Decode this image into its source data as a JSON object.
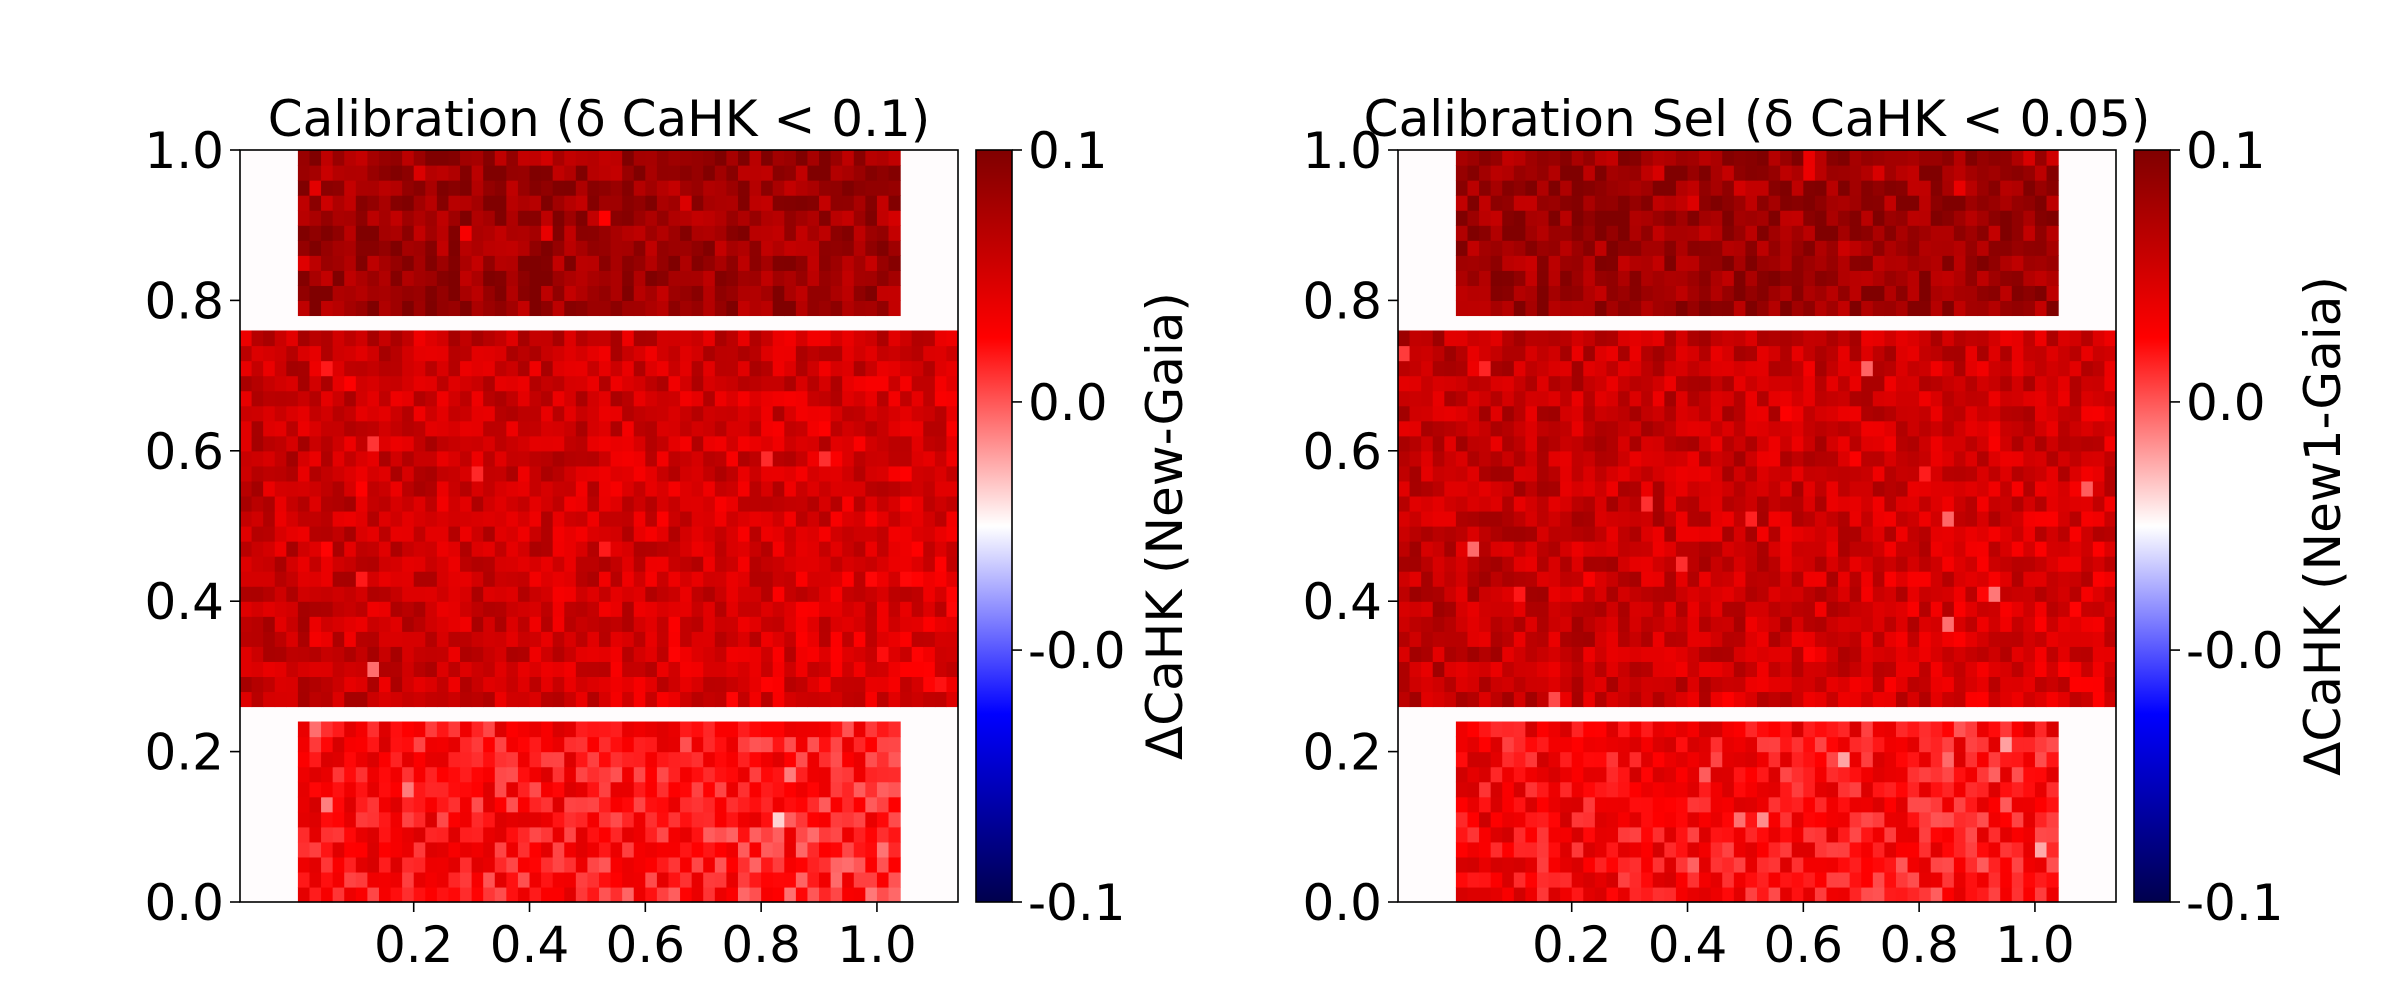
{
  "chart_data": [
    {
      "type": "heatmap",
      "title": "Calibration (δ CaHK < 0.1)",
      "x_ticks": [
        "0.2",
        "0.4",
        "0.6",
        "0.8",
        "1.0"
      ],
      "x_tick_values": [
        0.2,
        0.4,
        0.6,
        0.8,
        1.0
      ],
      "y_ticks": [
        "0.0",
        "0.2",
        "0.4",
        "0.6",
        "0.8",
        "1.0"
      ],
      "y_tick_values": [
        0.0,
        0.2,
        0.4,
        0.6,
        0.8,
        1.0
      ],
      "xlim": [
        -0.1,
        1.14
      ],
      "ylim": [
        0.0,
        1.0
      ],
      "colorbar": {
        "label": "ΔCaHK (New-Gaia)",
        "tick_labels": [
          "0.1",
          "0.0",
          "-0.0",
          "-0.1"
        ],
        "tick_values": [
          0.1,
          0.033,
          -0.033,
          -0.1
        ],
        "range": [
          -0.1,
          0.1
        ],
        "colormap": "seismic"
      },
      "regions": [
        {
          "x": [
            0.0,
            1.04
          ],
          "y": [
            0.78,
            1.0
          ],
          "mean_value": 0.088
        },
        {
          "x": [
            -0.1,
            1.14
          ],
          "y": [
            0.26,
            0.76
          ],
          "mean_value": 0.072
        },
        {
          "x": [
            0.0,
            1.04
          ],
          "y": [
            0.0,
            0.24
          ],
          "mean_value": 0.052
        }
      ]
    },
    {
      "type": "heatmap",
      "title": "Calibration Sel (δ CaHK < 0.05)",
      "x_ticks": [
        "0.2",
        "0.4",
        "0.6",
        "0.8",
        "1.0"
      ],
      "x_tick_values": [
        0.2,
        0.4,
        0.6,
        0.8,
        1.0
      ],
      "y_ticks": [
        "0.0",
        "0.2",
        "0.4",
        "0.6",
        "0.8",
        "1.0"
      ],
      "y_tick_values": [
        0.0,
        0.2,
        0.4,
        0.6,
        0.8,
        1.0
      ],
      "xlim": [
        -0.1,
        1.14
      ],
      "ylim": [
        0.0,
        1.0
      ],
      "colorbar": {
        "label": "ΔCaHK (New1-Gaia)",
        "tick_labels": [
          "0.1",
          "0.0",
          "-0.0",
          "-0.1"
        ],
        "tick_values": [
          0.1,
          0.033,
          -0.033,
          -0.1
        ],
        "range": [
          -0.1,
          0.1
        ],
        "colormap": "seismic"
      },
      "regions": [
        {
          "x": [
            0.0,
            1.04
          ],
          "y": [
            0.78,
            1.0
          ],
          "mean_value": 0.088
        },
        {
          "x": [
            -0.1,
            1.14
          ],
          "y": [
            0.26,
            0.76
          ],
          "mean_value": 0.074
        },
        {
          "x": [
            0.0,
            1.04
          ],
          "y": [
            0.0,
            0.24
          ],
          "mean_value": 0.055
        }
      ]
    }
  ]
}
